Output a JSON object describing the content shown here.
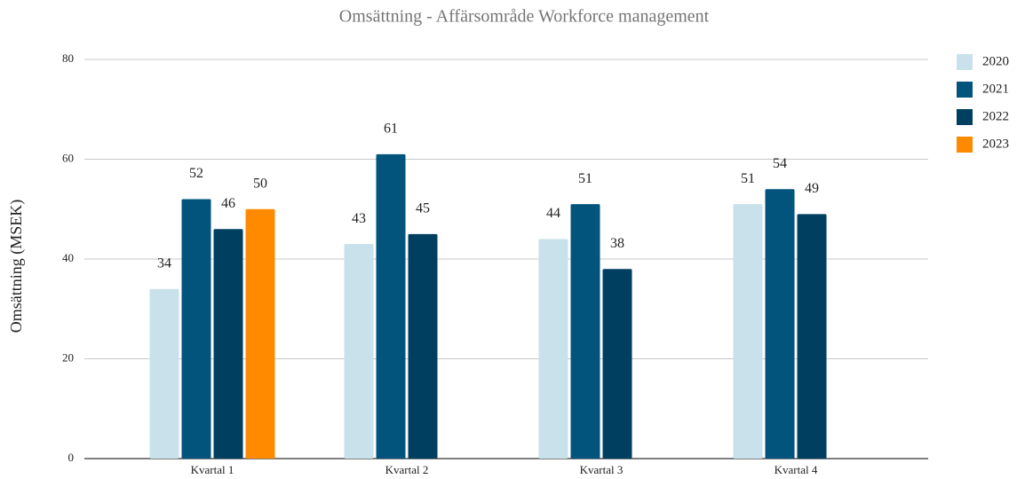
{
  "chart_data": {
    "type": "bar",
    "title": "Omsättning - Affärsområde Workforce management",
    "y_label": "Omsättning (MSEK)",
    "categories": [
      "Kvartal 1",
      "Kvartal 2",
      "Kvartal 3",
      "Kvartal 4"
    ],
    "series": [
      {
        "name": "2020",
        "color": "#c9e1ea",
        "values": [
          34,
          43,
          44,
          51
        ]
      },
      {
        "name": "2021",
        "color": "#02547c",
        "values": [
          52,
          61,
          51,
          54
        ]
      },
      {
        "name": "2022",
        "color": "#003f5f",
        "values": [
          46,
          45,
          38,
          49
        ]
      },
      {
        "name": "2023",
        "color": "#ff8a00",
        "values": [
          50,
          null,
          null,
          null
        ]
      }
    ],
    "ylim": [
      0,
      80
    ],
    "yticks": [
      0,
      20,
      40,
      60,
      80
    ],
    "grid": true,
    "legend": "right"
  }
}
